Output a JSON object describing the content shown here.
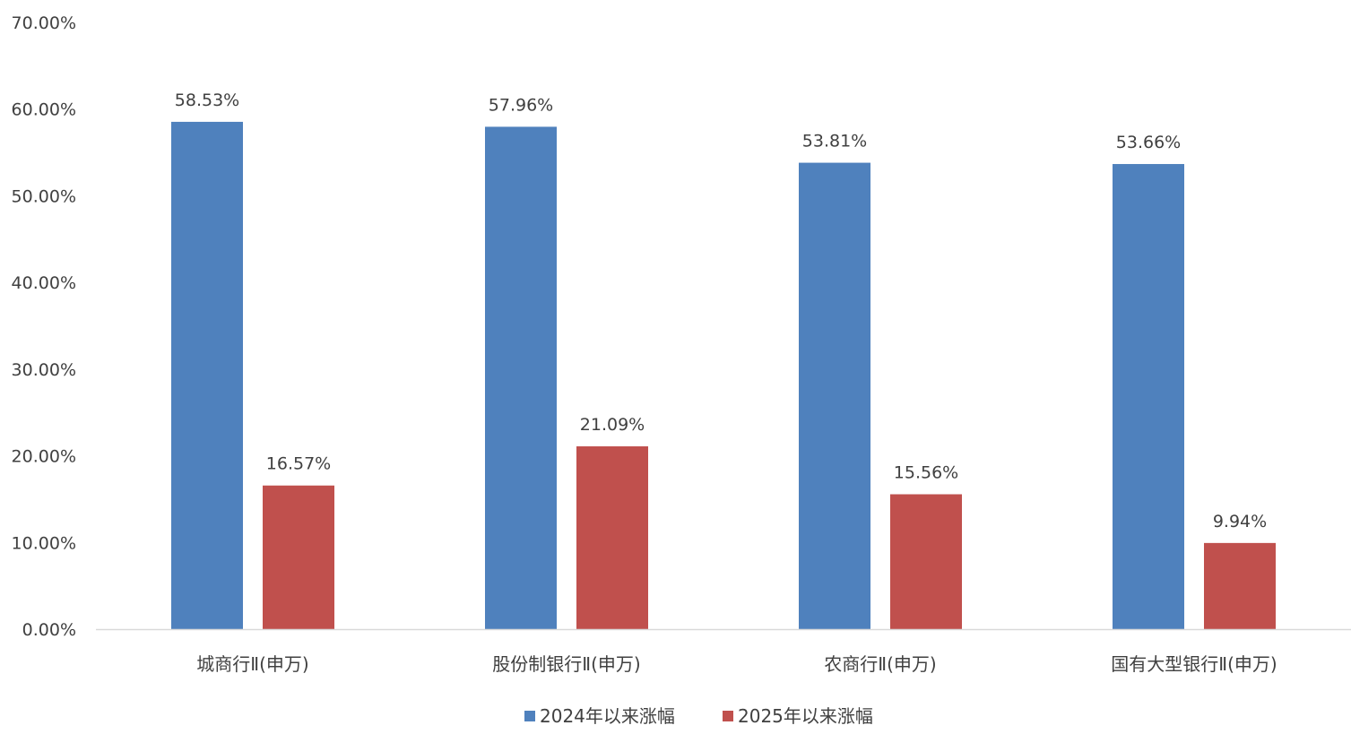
{
  "chart_data": {
    "type": "bar",
    "categories": [
      "城商行Ⅱ(申万)",
      "股份制银行Ⅱ(申万)",
      "农商行Ⅱ(申万)",
      "国有大型银行Ⅱ(申万)"
    ],
    "series": [
      {
        "name": "2024年以来涨幅",
        "color": "#4F81BD",
        "values": [
          58.53,
          57.96,
          53.81,
          53.66
        ],
        "labels": [
          "58.53%",
          "57.96%",
          "53.81%",
          "53.66%"
        ]
      },
      {
        "name": "2025年以来涨幅",
        "color": "#C0504D",
        "values": [
          16.57,
          21.09,
          15.56,
          9.94
        ],
        "labels": [
          "16.57%",
          "21.09%",
          "15.56%",
          "9.94%"
        ]
      }
    ],
    "ylim": [
      0,
      70
    ],
    "yticks": [
      0,
      10,
      20,
      30,
      40,
      50,
      60,
      70
    ],
    "ytick_labels": [
      "0.00%",
      "10.00%",
      "20.00%",
      "30.00%",
      "40.00%",
      "50.00%",
      "60.00%",
      "70.00%"
    ],
    "title": "",
    "xlabel": "",
    "ylabel": "",
    "grid": false,
    "legend_position": "bottom-center"
  }
}
